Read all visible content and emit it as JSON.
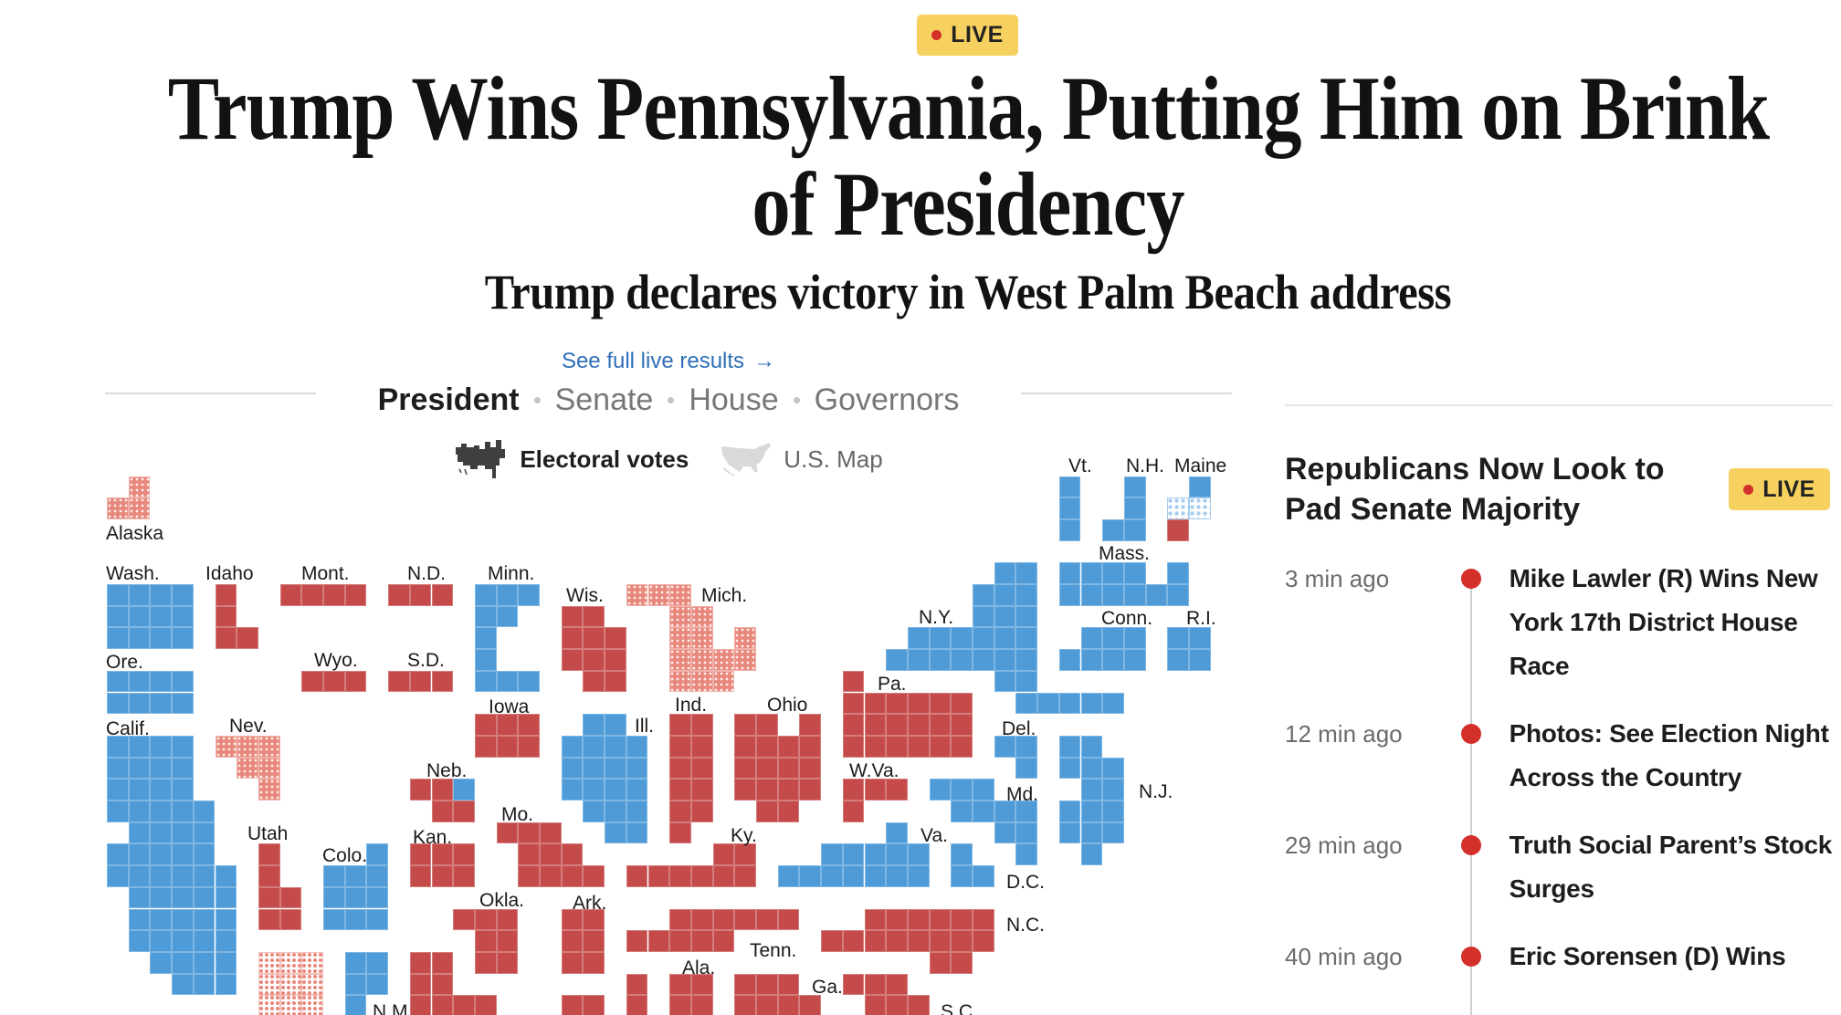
{
  "colors": {
    "dem": "#4e9bd8",
    "rep": "#c44b4a",
    "rep_pending": "#e8877c",
    "dem_pending": "#a8cdee",
    "live_badge": "#f6d15f",
    "live_dot": "#d3302a",
    "link": "#2f6fb8"
  },
  "top_badge": {
    "icon": "live-dot-icon",
    "label": "LIVE"
  },
  "headline": {
    "lines": [
      "Trump Wins Pennsylvania, Putting Him on Brink",
      "of Presidency"
    ],
    "subhead": "Trump declares victory in West Palm Beach address"
  },
  "results_nav": {
    "link_label": "See full live results",
    "link_icon": "arrow-right-icon",
    "tabs": [
      {
        "label": "President",
        "active": true
      },
      {
        "label": "Senate",
        "active": false
      },
      {
        "label": "House",
        "active": false
      },
      {
        "label": "Governors",
        "active": false
      }
    ],
    "views": [
      {
        "label": "Electoral votes",
        "icon": "electoral-tile-map-icon",
        "active": true
      },
      {
        "label": "U.S. Map",
        "icon": "us-map-icon",
        "active": false
      }
    ]
  },
  "map": {
    "states": [
      {
        "label": "Alaska",
        "status": "rep-pending",
        "electoral_votes": 3
      },
      {
        "label": "Wash.",
        "status": "dem",
        "electoral_votes": 12
      },
      {
        "label": "Idaho",
        "status": "rep",
        "electoral_votes": 4
      },
      {
        "label": "Mont.",
        "status": "rep",
        "electoral_votes": 4
      },
      {
        "label": "N.D.",
        "status": "rep",
        "electoral_votes": 3
      },
      {
        "label": "Minn.",
        "status": "dem",
        "electoral_votes": 10
      },
      {
        "label": "Wis.",
        "status": "rep",
        "electoral_votes": 10
      },
      {
        "label": "Mich.",
        "status": "rep-pending",
        "electoral_votes": 15
      },
      {
        "label": "Ore.",
        "status": "dem",
        "electoral_votes": 8
      },
      {
        "label": "Wyo.",
        "status": "rep",
        "electoral_votes": 3
      },
      {
        "label": "S.D.",
        "status": "rep",
        "electoral_votes": 3
      },
      {
        "label": "Pa.",
        "status": "rep",
        "electoral_votes": 19
      },
      {
        "label": "N.Y.",
        "status": "dem",
        "electoral_votes": 28
      },
      {
        "label": "Vt.",
        "status": "dem",
        "electoral_votes": 3
      },
      {
        "label": "N.H.",
        "status": "dem",
        "electoral_votes": 4
      },
      {
        "label": "Maine",
        "status": [
          "dem",
          "dem-pending",
          "rep"
        ],
        "electoral_votes": 4
      },
      {
        "label": "Mass.",
        "status": "dem",
        "electoral_votes": 11
      },
      {
        "label": "Conn.",
        "status": "dem",
        "electoral_votes": 7
      },
      {
        "label": "R.I.",
        "status": "dem",
        "electoral_votes": 4
      },
      {
        "label": "Iowa",
        "status": "rep",
        "electoral_votes": 6
      },
      {
        "label": "Ind.",
        "status": "rep",
        "electoral_votes": 11
      },
      {
        "label": "Ohio",
        "status": "rep",
        "electoral_votes": 17
      },
      {
        "label": "Ill.",
        "status": "dem",
        "electoral_votes": 19
      },
      {
        "label": "Calif.",
        "status": "dem",
        "electoral_votes": 54
      },
      {
        "label": "Nev.",
        "status": "rep-pending",
        "electoral_votes": 6
      },
      {
        "label": "Del.",
        "status": "dem",
        "electoral_votes": 3
      },
      {
        "label": "N.J.",
        "status": "dem",
        "electoral_votes": 14
      },
      {
        "label": "Neb.",
        "status": [
          "rep",
          "dem"
        ],
        "electoral_votes": 5
      },
      {
        "label": "W.Va.",
        "status": "rep",
        "electoral_votes": 4
      },
      {
        "label": "Md.",
        "status": "dem",
        "electoral_votes": 10
      },
      {
        "label": "Mo.",
        "status": "rep",
        "electoral_votes": 10
      },
      {
        "label": "Kan.",
        "status": "rep",
        "electoral_votes": 6
      },
      {
        "label": "Utah",
        "status": "rep",
        "electoral_votes": 6
      },
      {
        "label": "Colo.",
        "status": "dem",
        "electoral_votes": 10
      },
      {
        "label": "Ky.",
        "status": "rep",
        "electoral_votes": 8
      },
      {
        "label": "Va.",
        "status": "dem",
        "electoral_votes": 13
      },
      {
        "label": "D.C.",
        "status": "dem",
        "electoral_votes": 3
      },
      {
        "label": "Okla.",
        "status": "rep",
        "electoral_votes": 7
      },
      {
        "label": "Ark.",
        "status": "rep",
        "electoral_votes": 6
      },
      {
        "label": "Tenn.",
        "status": "rep",
        "electoral_votes": 11
      },
      {
        "label": "N.C.",
        "status": "rep",
        "electoral_votes": 16
      },
      {
        "status": "rep-early"
      },
      {
        "label": "N.M.",
        "status": "dem"
      },
      {
        "status": "rep"
      },
      {
        "status": "rep"
      },
      {
        "status": "rep"
      },
      {
        "label": "Ala.",
        "status": "rep"
      },
      {
        "label": "Ga.",
        "status": "rep"
      },
      {
        "label": "S.C.",
        "status": "rep"
      }
    ]
  },
  "sidebar": {
    "title": "Republicans Now Look to Pad Senate Majority",
    "badge": {
      "icon": "live-dot-icon",
      "label": "LIVE"
    },
    "feed": [
      {
        "time": "3 min ago",
        "headline": "Mike Lawler (R) Wins New York 17th District House Race"
      },
      {
        "time": "12 min ago",
        "headline": "Photos: See Election Night Across the Country"
      },
      {
        "time": "29 min ago",
        "headline": "Truth Social Parent’s Stock Surges"
      },
      {
        "time": "40 min ago",
        "headline": "Eric Sorensen (D) Wins"
      }
    ]
  }
}
